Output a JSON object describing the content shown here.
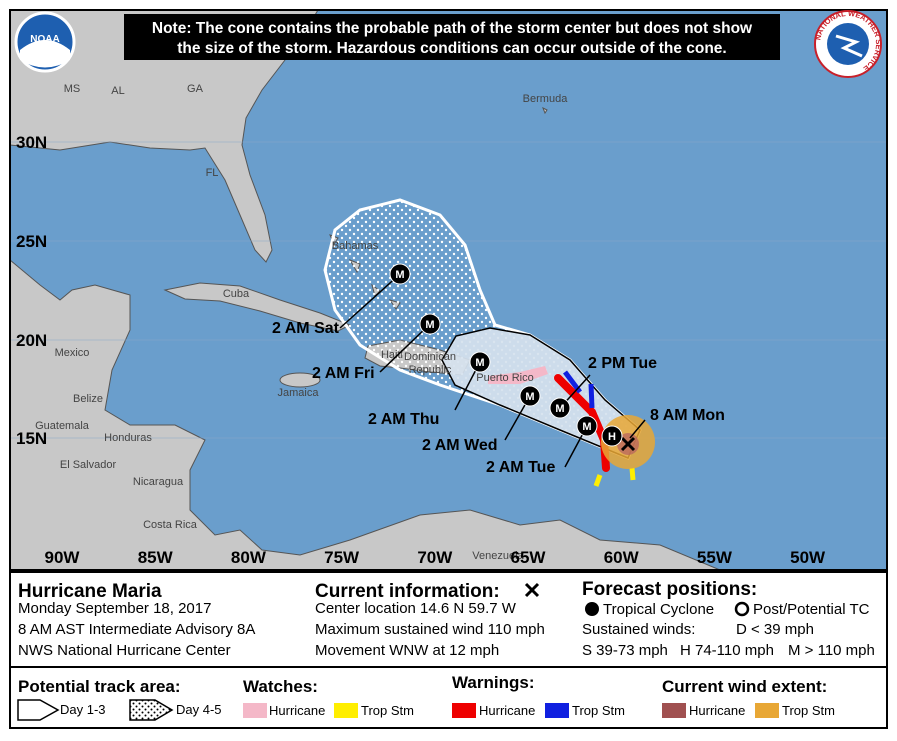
{
  "note": [
    "Note: The cone contains the probable path of the storm center but does not show",
    "the size of the storm. Hazardous conditions can occur outside of the cone."
  ],
  "logos": {
    "noaa": "NOAA",
    "nws": "NATIONAL WEATHER SERVICE"
  },
  "map": {
    "lat_labels": [
      "30N",
      "25N",
      "20N",
      "15N"
    ],
    "lon_labels": [
      "90W",
      "85W",
      "80W",
      "75W",
      "70W",
      "65W",
      "60W",
      "55W",
      "50W"
    ],
    "places": [
      "MS",
      "AL",
      "GA",
      "FL",
      "Bermuda",
      "Bahamas",
      "Cuba",
      "Mexico",
      "Belize",
      "Guatemala",
      "Honduras",
      "El Salvador",
      "Nicaragua",
      "Costa Rica",
      "Jamaica",
      "Haiti",
      "Dominican",
      "Republic",
      "Puerto Rico",
      "Venezuela"
    ]
  },
  "track": {
    "points": [
      {
        "symbol": "M",
        "label": "2 AM Sat"
      },
      {
        "symbol": "M",
        "label": "2 AM Fri"
      },
      {
        "symbol": "M",
        "label": "2 AM Thu"
      },
      {
        "symbol": "M",
        "label": "2 AM Wed"
      },
      {
        "symbol": "M",
        "label": "2 PM Tue"
      },
      {
        "symbol": "M",
        "label": "2 AM Tue"
      },
      {
        "symbol": "H",
        "label": null
      }
    ],
    "current_label": "8 AM Mon"
  },
  "legend": {
    "storm": {
      "title": "Hurricane Maria",
      "lines": [
        "Monday September 18, 2017",
        "8 AM AST Intermediate Advisory 8A",
        "NWS National Hurricane Center"
      ]
    },
    "current": {
      "title": "Current information:",
      "lines": [
        "Center location 14.6 N 59.7 W",
        "Maximum sustained wind 110 mph",
        "Movement WNW at 12 mph"
      ]
    },
    "forecast": {
      "title": "Forecast positions:",
      "tropical": "Tropical Cyclone",
      "post": "Post/Potential TC",
      "sustained": "Sustained winds:",
      "d": "D < 39 mph",
      "s": "S 39-73 mph",
      "h": "H 74-110 mph",
      "m": "M > 110 mph"
    },
    "track_area": {
      "title": "Potential track area:",
      "day13": "Day 1-3",
      "day45": "Day 4-5"
    },
    "watches": {
      "title": "Watches:",
      "hurricane": "Hurricane",
      "trop": "Trop Stm"
    },
    "warnings": {
      "title": "Warnings:",
      "hurricane": "Hurricane",
      "trop": "Trop Stm"
    },
    "wind": {
      "title": "Current wind extent:",
      "hurricane": "Hurricane",
      "trop": "Trop Stm"
    }
  }
}
